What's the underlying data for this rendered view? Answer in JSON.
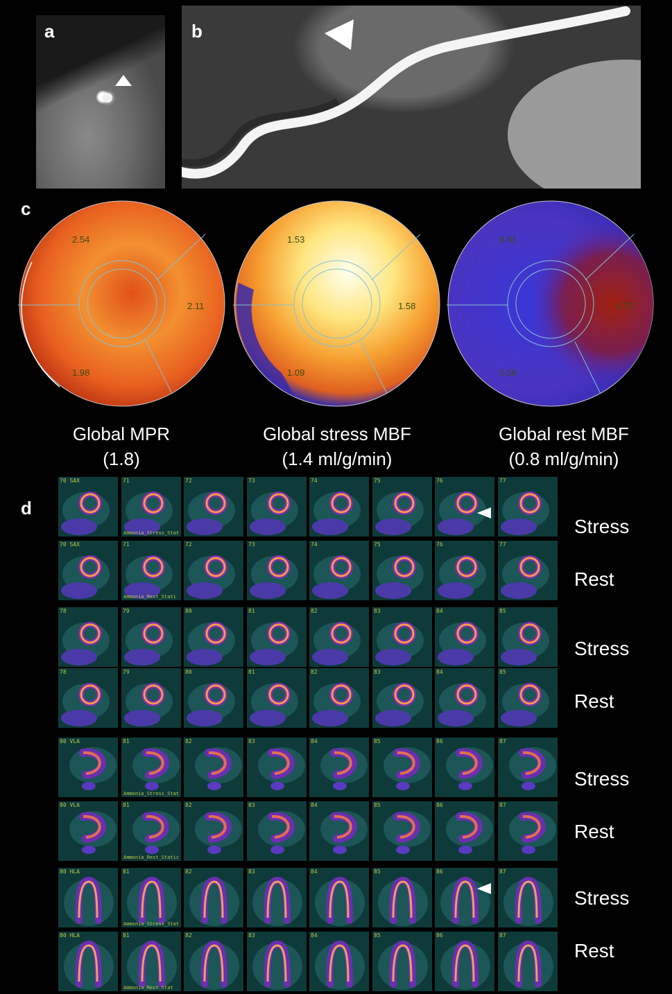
{
  "panels": {
    "a": "a",
    "b": "b",
    "c": "c",
    "d": "d"
  },
  "polar_maps": [
    {
      "values": [
        "2.54",
        "2.11",
        "1.98"
      ],
      "caption_line1": "Global  MPR",
      "caption_line2": "(1.8)",
      "colors": {
        "center": "#e25a1c",
        "mid": "#f08a2a",
        "edge": "#c23a10"
      }
    },
    {
      "values": [
        "1.53",
        "1.58",
        "1.09"
      ],
      "caption_line1": "Global stress MBF",
      "caption_line2": "(1.4 ml/g/min)",
      "colors": {
        "center": "#fffbe8",
        "mid": "#ffd060",
        "edge": "#e07020"
      }
    },
    {
      "values": [
        "0.61",
        "0.75",
        "0.56"
      ],
      "caption_line1": "Global rest MBF",
      "caption_line2": "(0.8 ml/g/min)",
      "colors": {
        "center": "#3a3ad0",
        "mid": "#5a2aa0",
        "edge": "#8a2010"
      }
    }
  ],
  "grid": {
    "rows": [
      {
        "label": "Stress",
        "view": "SAX",
        "start": 70,
        "caption": "Ammonia_Stress_Stat"
      },
      {
        "label": "Rest",
        "view": "SAX",
        "start": 70,
        "caption": "Ammonia_Rest_Stati"
      },
      {
        "label": "Stress",
        "view": "",
        "start": 78,
        "caption": ""
      },
      {
        "label": "Rest",
        "view": "",
        "start": 78,
        "caption": ""
      },
      {
        "label": "Stress",
        "view": "VLA",
        "start": 80,
        "caption": "Ammonia_Stress_Stat"
      },
      {
        "label": "Rest",
        "view": "VLA",
        "start": 80,
        "caption": "Ammonia_Rest_Static"
      },
      {
        "label": "Stress",
        "view": "HLA",
        "start": 80,
        "caption": "Ammonia_Stress_Stat"
      },
      {
        "label": "Rest",
        "view": "HLA",
        "start": 80,
        "caption": "Ammonia_Rest_Stat"
      }
    ],
    "columns": 8
  },
  "colors": {
    "background": "#000000",
    "label": "#ffffff",
    "tile_text": "#b6c848",
    "tile_bg": "#0d3535"
  }
}
